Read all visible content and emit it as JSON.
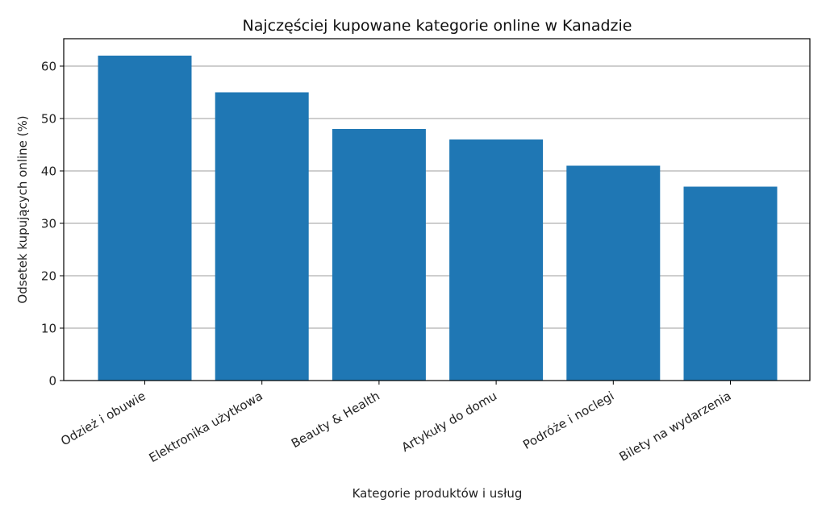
{
  "chart_data": {
    "type": "bar",
    "title": "Najczęściej kupowane kategorie online w Kanadzie",
    "xlabel": "Kategorie produktów i usług",
    "ylabel": "Odsetek kupujących online (%)",
    "categories": [
      "Odzież i obuwie",
      "Elektronika użytkowa",
      "Beauty & Health",
      "Artykuły do domu",
      "Podróże i noclegi",
      "Bilety na wydarzenia"
    ],
    "values": [
      62,
      55,
      48,
      46,
      41,
      37
    ],
    "ylim": [
      0,
      65
    ],
    "yticks": [
      0,
      10,
      20,
      30,
      40,
      50,
      60
    ],
    "grid": "y",
    "bar_color": "#1f77b4",
    "grid_color": "#b0b0b0",
    "xtick_rotation": -30
  }
}
